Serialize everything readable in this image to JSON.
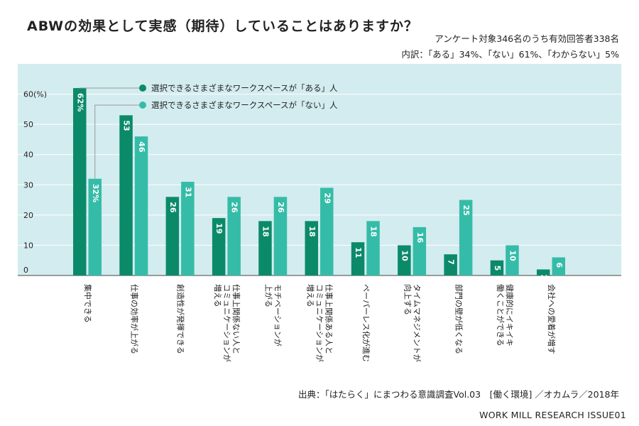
{
  "header": {
    "title": "ABWの効果として実感（期待）していることはありますか？",
    "survey_line": "アンケート対象346名のうち有効回答者338名",
    "breakdown_line": "内訳：「ある」34%、「ない」61%、「わからない」5%"
  },
  "footer": {
    "source": "出典：「はたらく」にまつわる意識調査Vol.03　[働く環境] ／オカムラ／2018年",
    "brand": "WORK MILL RESEARCH ISSUE01"
  },
  "colors": {
    "plot_bg": "#d3ecef",
    "series_yes": "#0b8a6a",
    "series_no": "#35bca8",
    "leader": "#999999"
  },
  "chart_data": {
    "type": "bar",
    "categories": [
      "集中できる",
      "仕事の効率が上がる",
      "創造性が発揮できる",
      "仕事上関係ない人と\nコミュニケーションが\n増える",
      "モチベーションが\n上がる",
      "仕事上関係ある人と\nコミュニケーションが\n増える",
      "ペーパーレス化が進む",
      "タイムマネジメントが\n向上する",
      "部門の壁が低くなる",
      "健康的にイキイキ\n働くことができる",
      "会社への愛着が増す"
    ],
    "series": [
      {
        "name": "選択できるさまざまなワークスペースが「ある」人",
        "values": [
          62,
          53,
          26,
          19,
          18,
          18,
          11,
          10,
          7,
          5,
          2
        ]
      },
      {
        "name": "選択できるさまざまなワークスペースが「ない」人",
        "values": [
          32,
          46,
          31,
          26,
          26,
          29,
          18,
          16,
          25,
          10,
          6
        ]
      }
    ],
    "value_suffix": "%",
    "ylim": [
      0,
      70
    ],
    "yticks": [
      0,
      10,
      20,
      30,
      40,
      50,
      60
    ],
    "ytick_labels": [
      "0",
      "10",
      "20",
      "30",
      "40",
      "50",
      "60(%)"
    ],
    "grid": true,
    "legend_position": "top-left inside plot"
  }
}
